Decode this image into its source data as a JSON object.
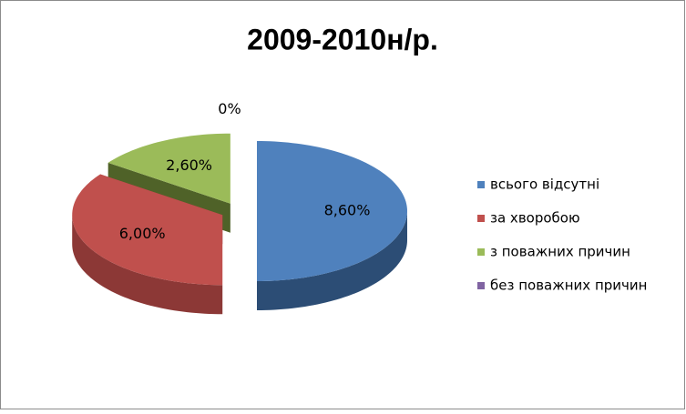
{
  "chart_data": {
    "type": "pie",
    "title": "2009-2010н/р.",
    "categories": [
      "всього відсутні",
      "за хворобою",
      "з поважних причин",
      "без поважних причин"
    ],
    "values": [
      8.6,
      6,
      2.6,
      0
    ],
    "value_labels": [
      "8,60%",
      "6,00%",
      "2,60%",
      "0%"
    ],
    "colors": [
      "#4f81bd",
      "#c0504d",
      "#9bbb59",
      "#8064a2"
    ],
    "side_colors": [
      "#2c4d75",
      "#8c3836",
      "#4f6228",
      "#4d3b62"
    ]
  }
}
